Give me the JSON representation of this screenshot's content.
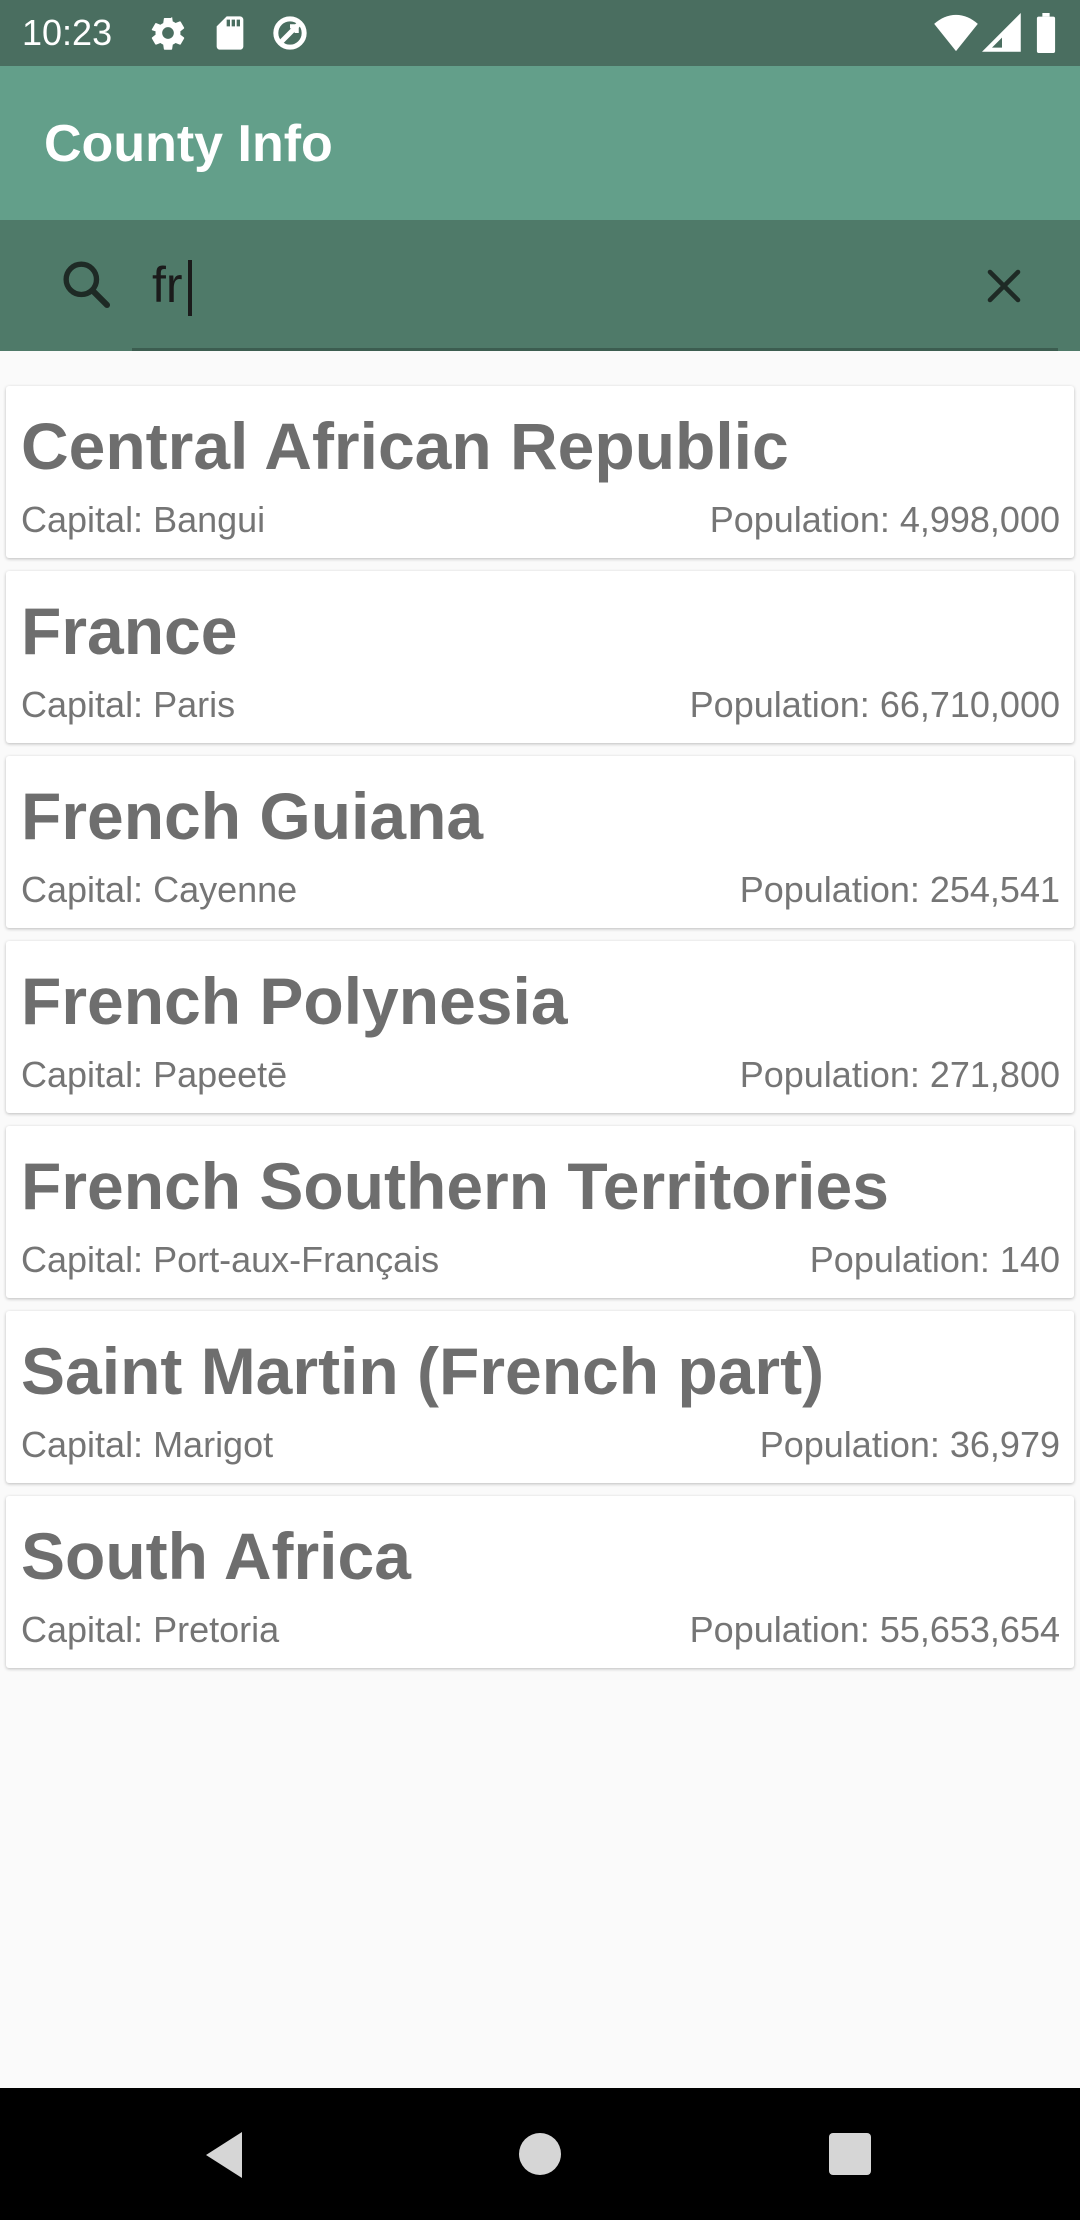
{
  "status_bar": {
    "time": "10:23",
    "left_icons": [
      "settings-icon",
      "sd-card-icon",
      "data-saver-icon"
    ],
    "right_icons": [
      "wifi-icon",
      "signal-icon",
      "battery-icon"
    ]
  },
  "app_bar": {
    "title": "County Info"
  },
  "search": {
    "value": "fr",
    "icon": "search-icon",
    "clear_icon": "close-icon"
  },
  "countries": [
    {
      "name": "Central African Republic",
      "capital": "Capital: Bangui",
      "population": "Population: 4,998,000"
    },
    {
      "name": "France",
      "capital": "Capital: Paris",
      "population": "Population: 66,710,000"
    },
    {
      "name": "French Guiana",
      "capital": "Capital: Cayenne",
      "population": "Population: 254,541"
    },
    {
      "name": "French Polynesia",
      "capital": "Capital: Papeetē",
      "population": "Population: 271,800"
    },
    {
      "name": "French Southern Territories",
      "capital": "Capital: Port-aux-Français",
      "population": "Population: 140"
    },
    {
      "name": "Saint Martin (French part)",
      "capital": "Capital: Marigot",
      "population": "Population: 36,979"
    },
    {
      "name": "South Africa",
      "capital": "Capital: Pretoria",
      "population": "Population: 55,653,654"
    }
  ],
  "nav_bar": {
    "buttons": [
      "back-icon",
      "home-icon",
      "recents-icon"
    ]
  },
  "colors": {
    "status_bar": "#4a6e60",
    "app_bar": "#639f8a",
    "search_bar": "#4f7a69",
    "background": "#fafafa"
  }
}
